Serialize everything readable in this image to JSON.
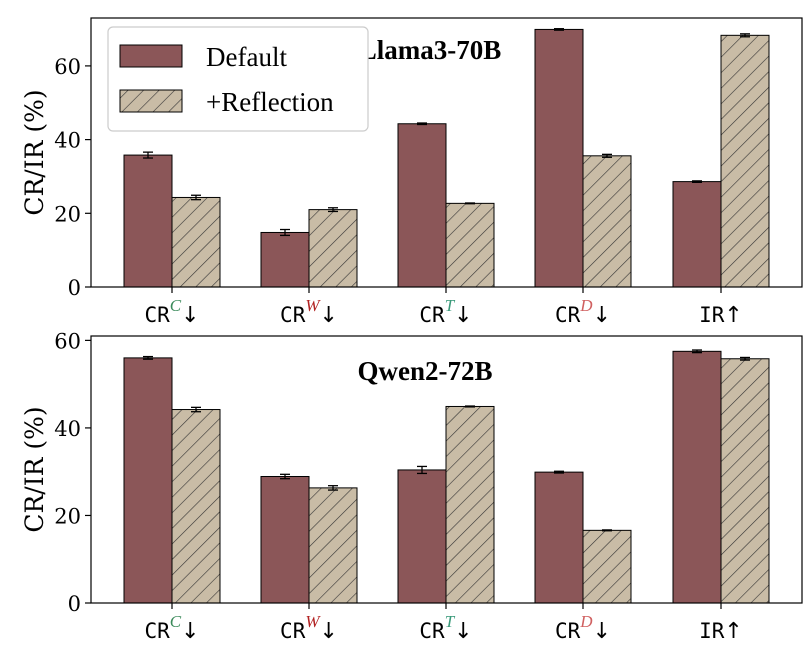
{
  "chart_data": [
    {
      "type": "bar",
      "title": "Llama3-70B",
      "ylabel": "CR/IR (%)",
      "ylim": [
        0,
        73
      ],
      "yticks": [
        0,
        20,
        40,
        60
      ],
      "categories": [
        {
          "base": "CR",
          "sup": "C",
          "sup_color": "#3a8a5a",
          "arrow": "↓"
        },
        {
          "base": "CR",
          "sup": "W",
          "sup_color": "#b22222",
          "arrow": "↓"
        },
        {
          "base": "CR",
          "sup": "T",
          "sup_color": "#3a9a7a",
          "arrow": "↓"
        },
        {
          "base": "CR",
          "sup": "D",
          "sup_color": "#d06060",
          "arrow": "↓"
        },
        {
          "base": "IR",
          "sup": "",
          "sup_color": "#000000",
          "arrow": "↑"
        }
      ],
      "series": [
        {
          "name": "Default",
          "values": [
            35.8,
            14.8,
            44.3,
            69.9,
            28.6
          ],
          "errors": [
            0.8,
            0.8,
            0.2,
            0.2,
            0.2
          ],
          "color": "#8b5658",
          "pattern": "solid"
        },
        {
          "name": "+Reflection",
          "values": [
            24.3,
            21.0,
            22.7,
            35.6,
            68.3
          ],
          "errors": [
            0.6,
            0.5,
            0.1,
            0.4,
            0.4
          ],
          "color": "#c9bca6",
          "pattern": "hatch"
        }
      ],
      "legend": "top-left"
    },
    {
      "type": "bar",
      "title": "Qwen2-72B",
      "ylabel": "CR/IR (%)",
      "ylim": [
        0,
        61
      ],
      "yticks": [
        0,
        20,
        40,
        60
      ],
      "categories": [
        {
          "base": "CR",
          "sup": "C",
          "sup_color": "#3a8a5a",
          "arrow": "↓"
        },
        {
          "base": "CR",
          "sup": "W",
          "sup_color": "#b22222",
          "arrow": "↓"
        },
        {
          "base": "CR",
          "sup": "T",
          "sup_color": "#3a9a7a",
          "arrow": "↓"
        },
        {
          "base": "CR",
          "sup": "D",
          "sup_color": "#d06060",
          "arrow": "↓"
        },
        {
          "base": "IR",
          "sup": "",
          "sup_color": "#000000",
          "arrow": "↑"
        }
      ],
      "series": [
        {
          "name": "Default",
          "values": [
            56.0,
            28.9,
            30.4,
            29.9,
            57.5
          ],
          "errors": [
            0.3,
            0.5,
            0.8,
            0.2,
            0.3
          ],
          "color": "#8b5658",
          "pattern": "solid"
        },
        {
          "name": "+Reflection",
          "values": [
            44.2,
            26.3,
            44.9,
            16.6,
            55.8
          ],
          "errors": [
            0.5,
            0.5,
            0.1,
            0.1,
            0.3
          ],
          "color": "#c9bca6",
          "pattern": "hatch"
        }
      ]
    }
  ]
}
